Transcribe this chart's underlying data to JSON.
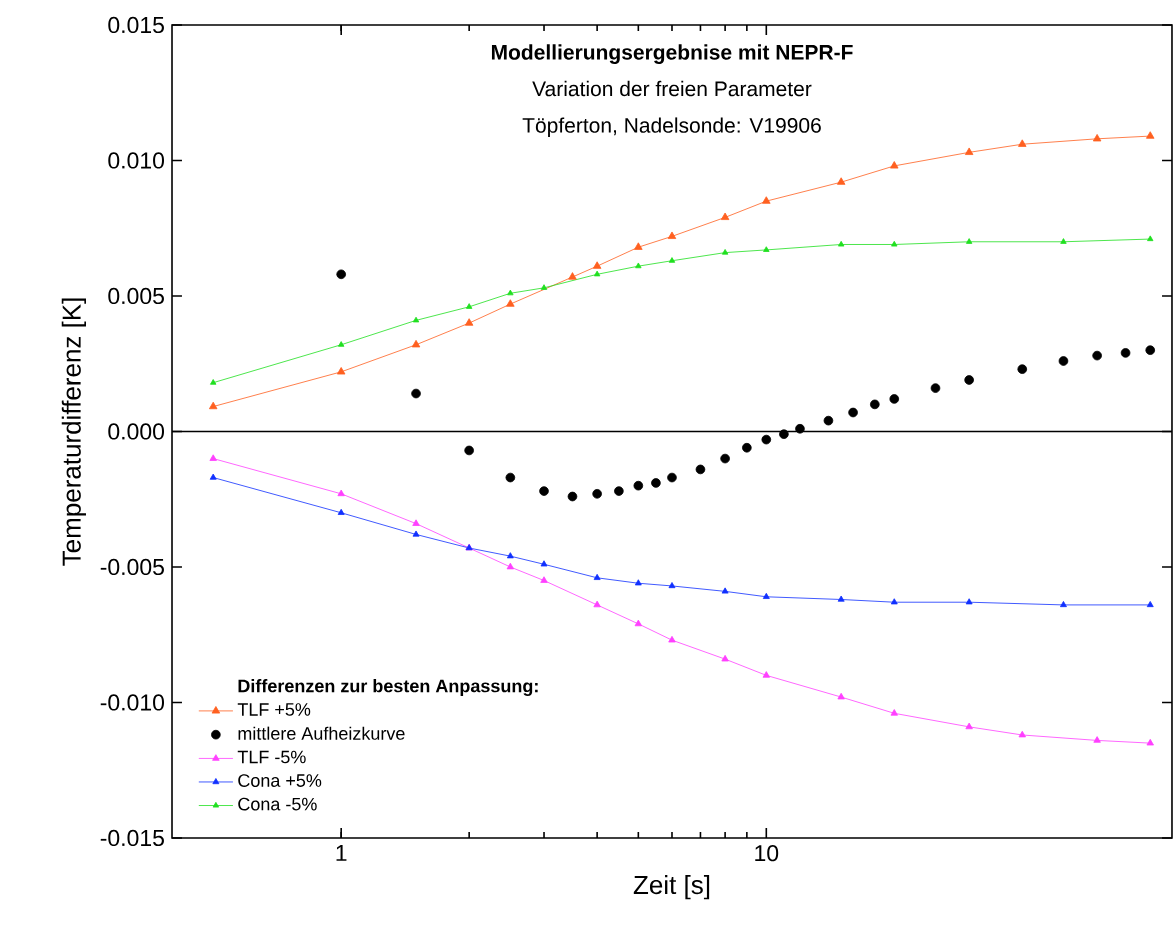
{
  "chart_data": {
    "type": "line",
    "title": "Modellierungsergebnise mit NEPR-F",
    "subtitle": "Variation der freien Parameter",
    "annotations": [
      "Töpferton, Nadelsonde: V19906"
    ],
    "xlabel": "Zeit [s]",
    "ylabel": "Temperaturdifferenz [K]",
    "legend_title": "Differenzen zur besten Anpassung:",
    "log": "x",
    "xlim": [
      0.4,
      90
    ],
    "xticks": [
      1,
      10
    ],
    "ylim": [
      -0.015,
      0.015
    ],
    "yticks": [
      {
        "value": -0.015,
        "label": "-0.015"
      },
      {
        "value": -0.01,
        "label": "-0.010"
      },
      {
        "value": -0.005,
        "label": "-0.005"
      },
      {
        "value": 0,
        "label": "0.000"
      },
      {
        "value": 0.005,
        "label": "0.005"
      },
      {
        "value": 0.01,
        "label": "0.010"
      },
      {
        "value": 0.015,
        "label": "0.015"
      }
    ],
    "grid": false,
    "legend": "bottom left",
    "ref_lines": [
      {
        "axis": "y",
        "value": 0,
        "color": "#000000"
      }
    ],
    "series": [
      {
        "name": "TLF +5%",
        "color": "#ff6020",
        "marker": "triangle",
        "x": [
          0.5,
          1,
          1.5,
          2,
          2.5,
          3.5,
          4,
          5,
          6,
          8,
          10,
          15,
          20,
          30,
          40,
          60,
          80
        ],
        "values": [
          0.00092,
          0.0022,
          0.0032,
          0.004,
          0.0047,
          0.0057,
          0.0061,
          0.0068,
          0.0072,
          0.0079,
          0.0085,
          0.0092,
          0.0098,
          0.0103,
          0.0106,
          0.0108,
          0.0109
        ]
      },
      {
        "name": "mittlere Aufheizkurve",
        "type": "scatter",
        "color": "#000000",
        "marker": "circle",
        "x": [
          1,
          1.5,
          2,
          2.5,
          3,
          3.5,
          4,
          4.5,
          5,
          5.5,
          6,
          7,
          8,
          9,
          10,
          11,
          12,
          14,
          16,
          18,
          20,
          25,
          30,
          40,
          50,
          60,
          70,
          80
        ],
        "values": [
          0.0058,
          0.0014,
          -0.0007,
          -0.0017,
          -0.0022,
          -0.0024,
          -0.0023,
          -0.0022,
          -0.002,
          -0.0019,
          -0.0017,
          -0.0014,
          -0.001,
          -0.0006,
          -0.0003,
          -0.0001,
          0.0001,
          0.0004,
          0.0007,
          0.001,
          0.0012,
          0.0016,
          0.0019,
          0.0023,
          0.0026,
          0.0028,
          0.0029,
          0.003
        ]
      },
      {
        "name": "TLF -5%",
        "color": "#ff40ff",
        "marker": "triangle",
        "x": [
          0.5,
          1,
          1.5,
          2,
          2.5,
          3,
          4,
          5,
          6,
          8,
          10,
          15,
          20,
          30,
          40,
          60,
          80
        ],
        "values": [
          -0.001,
          -0.0023,
          -0.0034,
          -0.0043,
          -0.005,
          -0.0055,
          -0.0064,
          -0.0071,
          -0.0077,
          -0.0084,
          -0.009,
          -0.0098,
          -0.0104,
          -0.0109,
          -0.0112,
          -0.0114,
          -0.0115
        ]
      },
      {
        "name": "Cona +5%",
        "color": "#1030ff",
        "marker": "triangle",
        "x": [
          0.5,
          1,
          1.5,
          2,
          2.5,
          3,
          4,
          5,
          6,
          8,
          10,
          15,
          20,
          30,
          50,
          80
        ],
        "values": [
          -0.0017,
          -0.003,
          -0.0038,
          -0.0043,
          -0.0046,
          -0.0049,
          -0.0054,
          -0.0056,
          -0.0057,
          -0.0059,
          -0.0061,
          -0.0062,
          -0.0063,
          -0.0063,
          -0.0064,
          -0.0064
        ]
      },
      {
        "name": "Cona -5%",
        "color": "#20e020",
        "marker": "triangle",
        "x": [
          0.5,
          1,
          1.5,
          2,
          2.5,
          3,
          4,
          5,
          6,
          8,
          10,
          15,
          20,
          30,
          50,
          80
        ],
        "values": [
          0.0018,
          0.0032,
          0.0041,
          0.0046,
          0.0051,
          0.0053,
          0.0058,
          0.0061,
          0.0063,
          0.0066,
          0.0067,
          0.0069,
          0.0069,
          0.007,
          0.007,
          0.0071
        ]
      }
    ]
  }
}
